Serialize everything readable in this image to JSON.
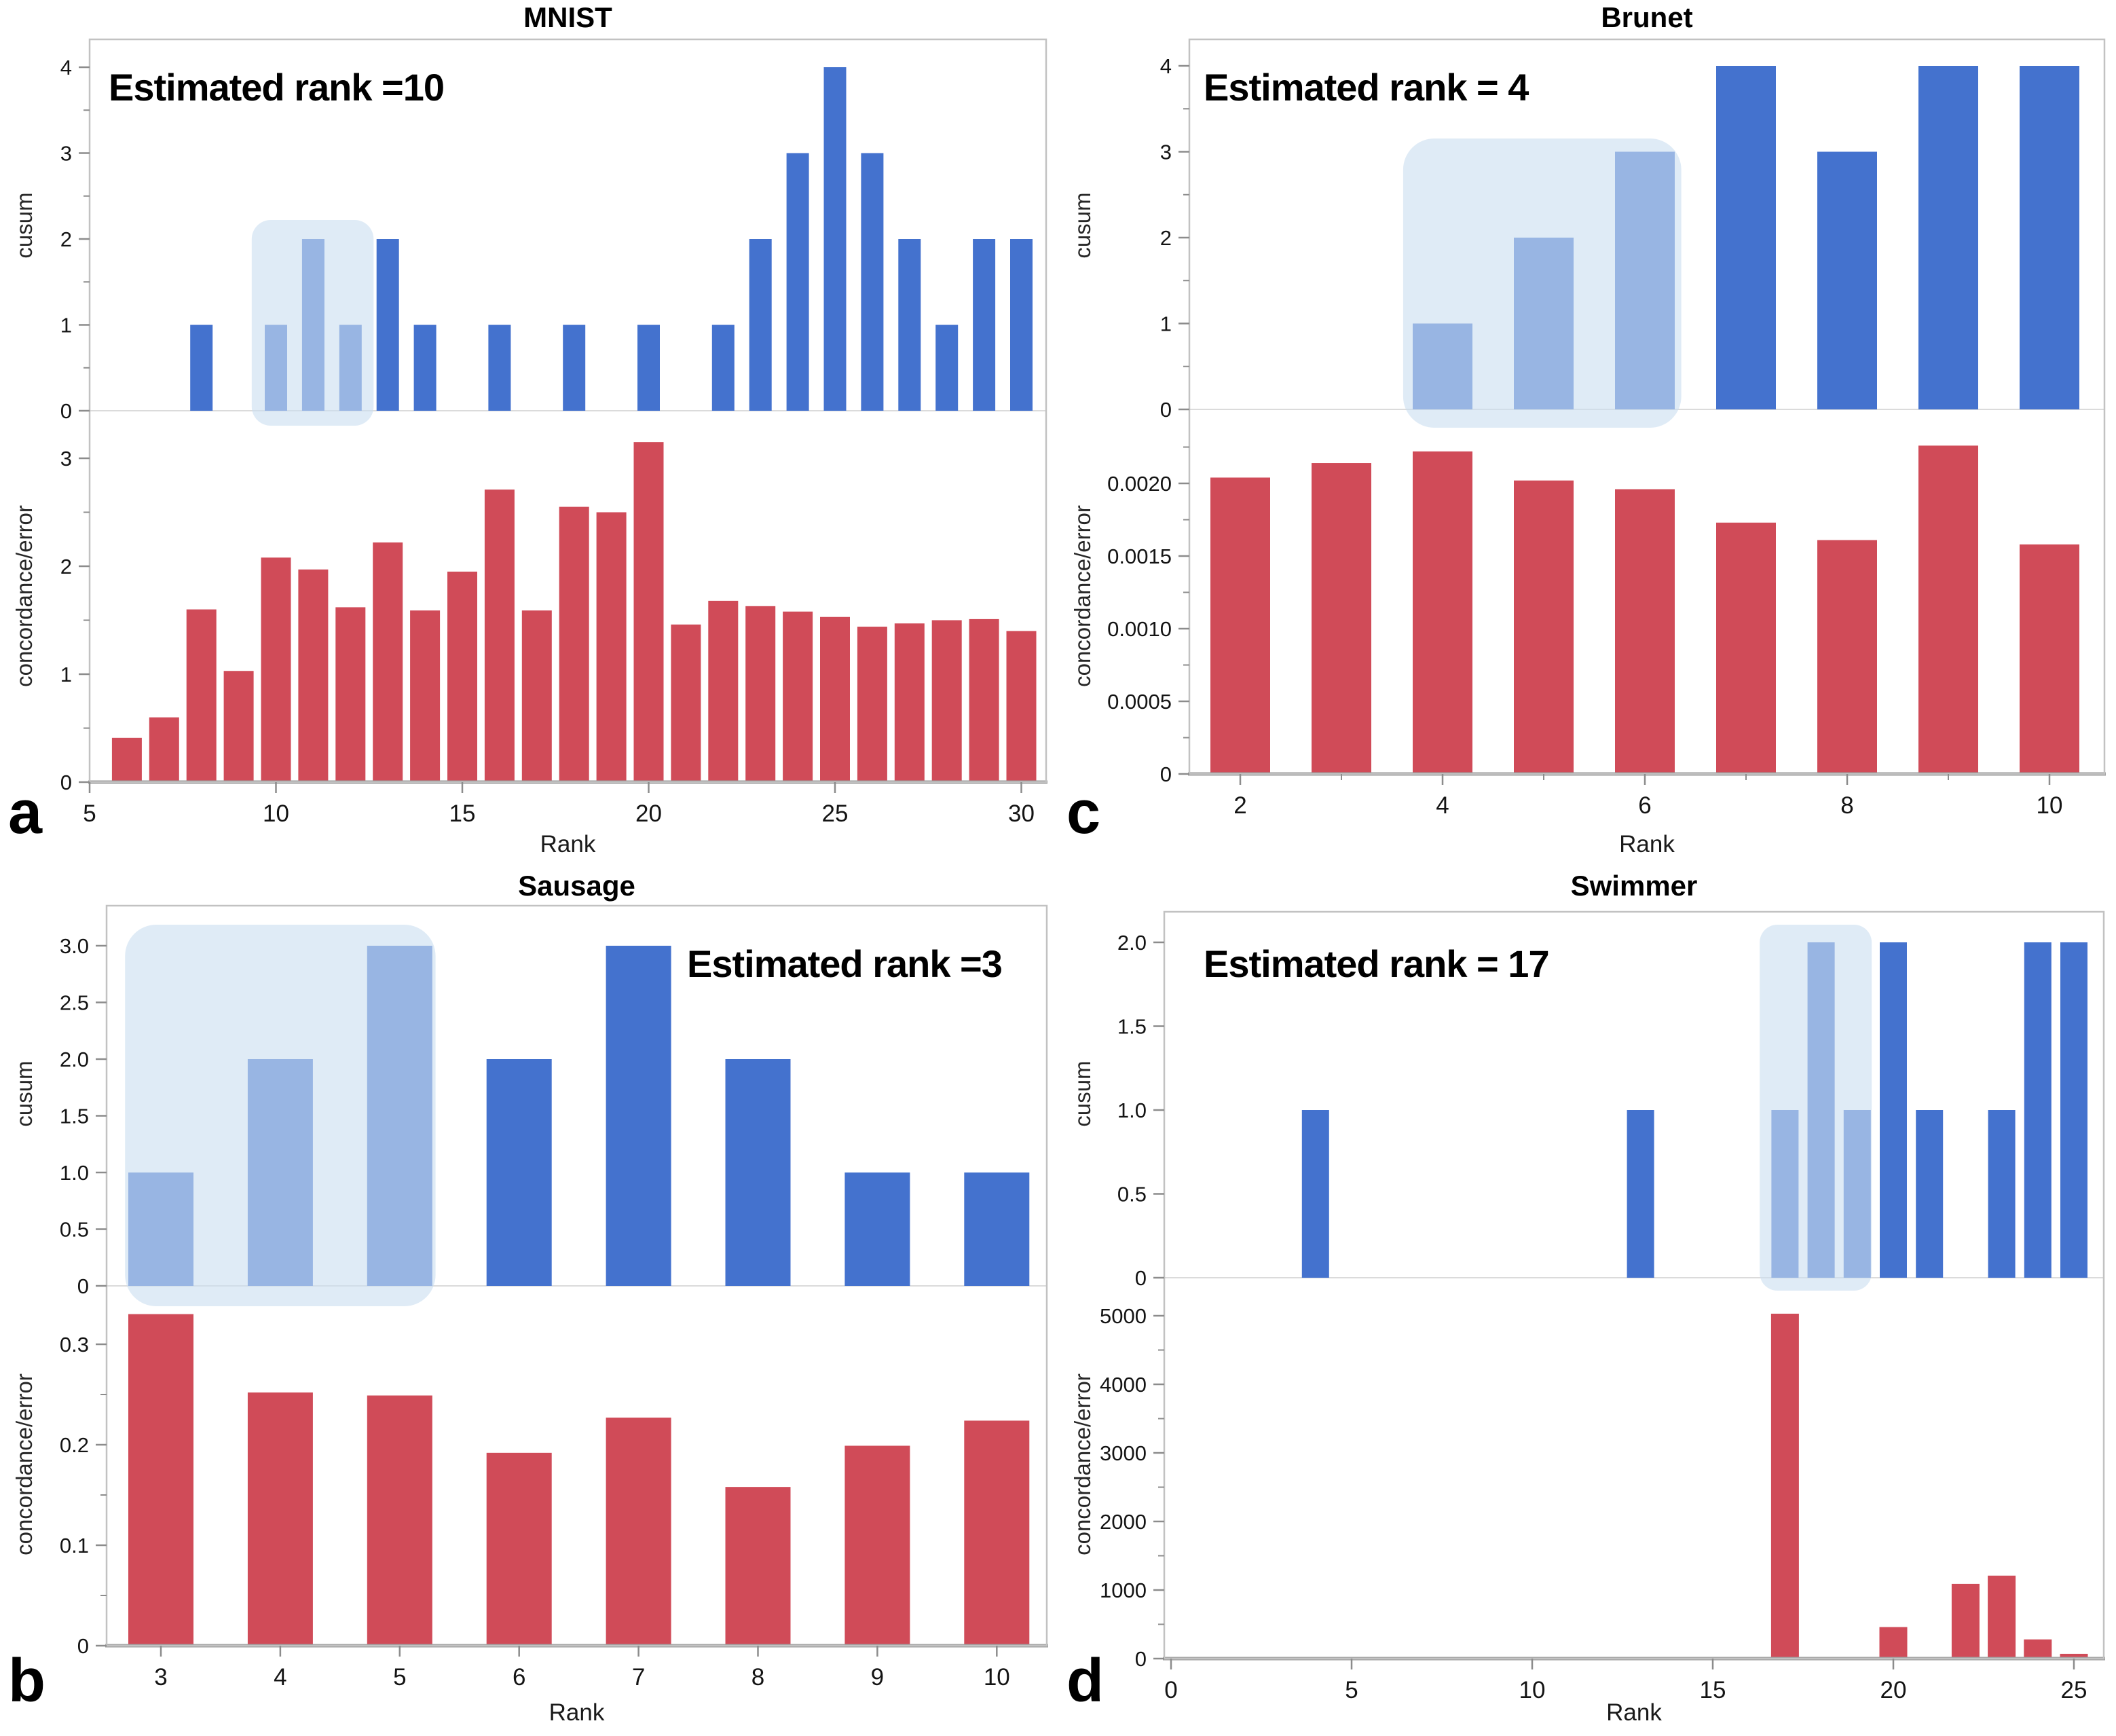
{
  "colors": {
    "bar_blue": "#4472CE",
    "bar_red": "#D04B58",
    "highlight_fill": "#CBDEF1",
    "plot_border": "#C2C2C2",
    "zero_line": "#DBDBDB",
    "axis_line": "#9C9C9C",
    "tick": "#8C8C8C"
  },
  "chart_data": [
    {
      "panel_letter": "a",
      "title": "MNIST",
      "annotation": "Estimated rank =10",
      "type": "bar",
      "xlabel": "Rank",
      "x_ticks": {
        "values": [
          5,
          10,
          15,
          20,
          25,
          30
        ],
        "labels": [
          "5",
          "10",
          "15",
          "20",
          "25",
          "30"
        ]
      },
      "x_minor_ticks": [],
      "cusum": {
        "ylabel": "cusum",
        "ylim": [
          0,
          4.3
        ],
        "yticks": {
          "values": [
            0,
            1,
            2,
            3,
            4
          ],
          "labels": [
            "0",
            "1",
            "2",
            "3",
            "4"
          ]
        },
        "minor_yticks": [
          0.5,
          1.5,
          2.5,
          3.5
        ],
        "x": [
          8,
          10,
          11,
          12,
          13,
          14,
          16,
          18,
          20,
          22,
          23,
          24,
          25,
          26,
          27,
          28,
          29,
          30
        ],
        "values": [
          1,
          1,
          2,
          1,
          2,
          1,
          1,
          1,
          1,
          1,
          2,
          3,
          4,
          3,
          2,
          1,
          2,
          2
        ]
      },
      "concordance": {
        "ylabel": "concordance/error",
        "ylim": [
          0,
          3.44
        ],
        "yticks": {
          "values": [
            0,
            1,
            2,
            3
          ],
          "labels": [
            "0",
            "1",
            "2",
            "3"
          ]
        },
        "minor_yticks": [
          0.5,
          1.5,
          2.5
        ],
        "x": [
          6,
          7,
          8,
          9,
          10,
          11,
          12,
          13,
          14,
          15,
          16,
          17,
          18,
          19,
          20,
          21,
          22,
          23,
          24,
          25,
          26,
          27,
          28,
          29,
          30
        ],
        "values": [
          0.41,
          0.6,
          1.6,
          1.03,
          2.08,
          1.97,
          1.62,
          2.22,
          1.59,
          1.95,
          2.71,
          1.59,
          2.55,
          2.5,
          3.15,
          1.46,
          1.68,
          1.63,
          1.58,
          1.53,
          1.44,
          1.47,
          1.5,
          1.51,
          1.4
        ]
      },
      "highlight": {
        "x_from": 9.35,
        "x_to": 12.62
      }
    },
    {
      "panel_letter": "b",
      "title": "Sausage",
      "annotation": "Estimated rank =3",
      "type": "bar",
      "xlabel": "Rank",
      "x_ticks": {
        "values": [
          3,
          4,
          5,
          6,
          7,
          8,
          9,
          10
        ],
        "labels": [
          "3",
          "4",
          "5",
          "6",
          "7",
          "8",
          "9",
          "10"
        ]
      },
      "x_minor_ticks": [],
      "cusum": {
        "ylabel": "cusum",
        "ylim": [
          0,
          3.35
        ],
        "yticks": {
          "values": [
            0,
            0.5,
            1.0,
            1.5,
            2.0,
            2.5,
            3.0
          ],
          "labels": [
            "0",
            "0.5",
            "1.0",
            "1.5",
            "2.0",
            "2.5",
            "3.0"
          ]
        },
        "minor_yticks": [],
        "x": [
          3,
          4,
          5,
          6,
          7,
          8,
          9,
          10
        ],
        "values": [
          1,
          2,
          3,
          2,
          3,
          2,
          1,
          1
        ]
      },
      "concordance": {
        "ylabel": "concordance/error",
        "ylim": [
          0,
          0.358
        ],
        "yticks": {
          "values": [
            0,
            0.1,
            0.2,
            0.3
          ],
          "labels": [
            "0",
            "0.1",
            "0.2",
            "0.3"
          ]
        },
        "minor_yticks": [
          0.05,
          0.15,
          0.25
        ],
        "x": [
          3,
          4,
          5,
          6,
          7,
          8,
          9,
          10
        ],
        "values": [
          0.33,
          0.252,
          0.249,
          0.192,
          0.227,
          0.158,
          0.199,
          0.224
        ]
      },
      "highlight": {
        "x_from": 2.7,
        "x_to": 5.3
      }
    },
    {
      "panel_letter": "c",
      "title": "Brunet",
      "annotation": "Estimated rank = 4",
      "type": "bar",
      "xlabel": "Rank",
      "x_ticks": {
        "values": [
          2,
          4,
          6,
          8,
          10
        ],
        "labels": [
          "2",
          "4",
          "6",
          "8",
          "10"
        ]
      },
      "x_minor_ticks": [
        3,
        5,
        7,
        9
      ],
      "cusum": {
        "ylabel": "cusum",
        "ylim": [
          0,
          4.3
        ],
        "yticks": {
          "values": [
            0,
            1,
            2,
            3,
            4
          ],
          "labels": [
            "0",
            "1",
            "2",
            "3",
            "4"
          ]
        },
        "minor_yticks": [
          0.5,
          1.5,
          2.5,
          3.5
        ],
        "x": [
          4,
          5,
          6,
          7,
          8,
          9,
          10
        ],
        "values": [
          1,
          2,
          3,
          4,
          3,
          4,
          4
        ]
      },
      "concordance": {
        "ylabel": "concordance/error",
        "ylim": [
          0,
          0.00251
        ],
        "yticks": {
          "values": [
            0,
            0.0005,
            0.001,
            0.0015,
            0.002
          ],
          "labels": [
            "0",
            "0.0005",
            "0.0010",
            "0.0015",
            "0.0020"
          ]
        },
        "minor_yticks": [
          0.00025,
          0.00075,
          0.00125,
          0.00175,
          0.00225
        ],
        "x": [
          2,
          3,
          4,
          5,
          6,
          7,
          8,
          9,
          10
        ],
        "values": [
          0.00204,
          0.00214,
          0.00222,
          0.00202,
          0.00196,
          0.00173,
          0.00161,
          0.00226,
          0.00158
        ]
      },
      "highlight": {
        "x_from": 3.61,
        "x_to": 6.36
      }
    },
    {
      "panel_letter": "d",
      "title": "Swimmer",
      "annotation": "Estimated rank = 17",
      "type": "bar",
      "xlabel": "Rank",
      "x_ticks": {
        "values": [
          0,
          5,
          10,
          15,
          20,
          25
        ],
        "labels": [
          "0",
          "5",
          "10",
          "15",
          "20",
          "25"
        ]
      },
      "x_minor_ticks": [],
      "cusum": {
        "ylabel": "cusum",
        "ylim": [
          0,
          2.2
        ],
        "yticks": {
          "values": [
            0,
            0.5,
            1.0,
            1.5,
            2.0
          ],
          "labels": [
            "0",
            "0.5",
            "1.0",
            "1.5",
            "2.0"
          ]
        },
        "minor_yticks": [],
        "x": [
          4,
          13,
          17,
          18,
          19,
          20,
          21,
          23,
          24,
          25
        ],
        "values": [
          1,
          1,
          1,
          2,
          1,
          2,
          1,
          1,
          2,
          2
        ]
      },
      "concordance": {
        "ylabel": "concordance/error",
        "ylim": [
          0,
          5550
        ],
        "yticks": {
          "values": [
            0,
            1000,
            2000,
            3000,
            4000,
            5000
          ],
          "labels": [
            "0",
            "1000",
            "2000",
            "3000",
            "4000",
            "5000"
          ]
        },
        "minor_yticks": [
          500,
          1500,
          2500,
          3500,
          4500
        ],
        "x": [
          2,
          3,
          4,
          5,
          6,
          7,
          8,
          9,
          10,
          11,
          12,
          13,
          14,
          15,
          16,
          17,
          18,
          19,
          20,
          21,
          22,
          23,
          24,
          25
        ],
        "values": [
          15,
          15,
          15,
          15,
          15,
          15,
          15,
          15,
          15,
          15,
          15,
          15,
          15,
          15,
          15,
          5030,
          15,
          15,
          460,
          20,
          1090,
          1210,
          280,
          70
        ]
      },
      "highlight": {
        "x_from": 16.3,
        "x_to": 19.4
      }
    }
  ]
}
